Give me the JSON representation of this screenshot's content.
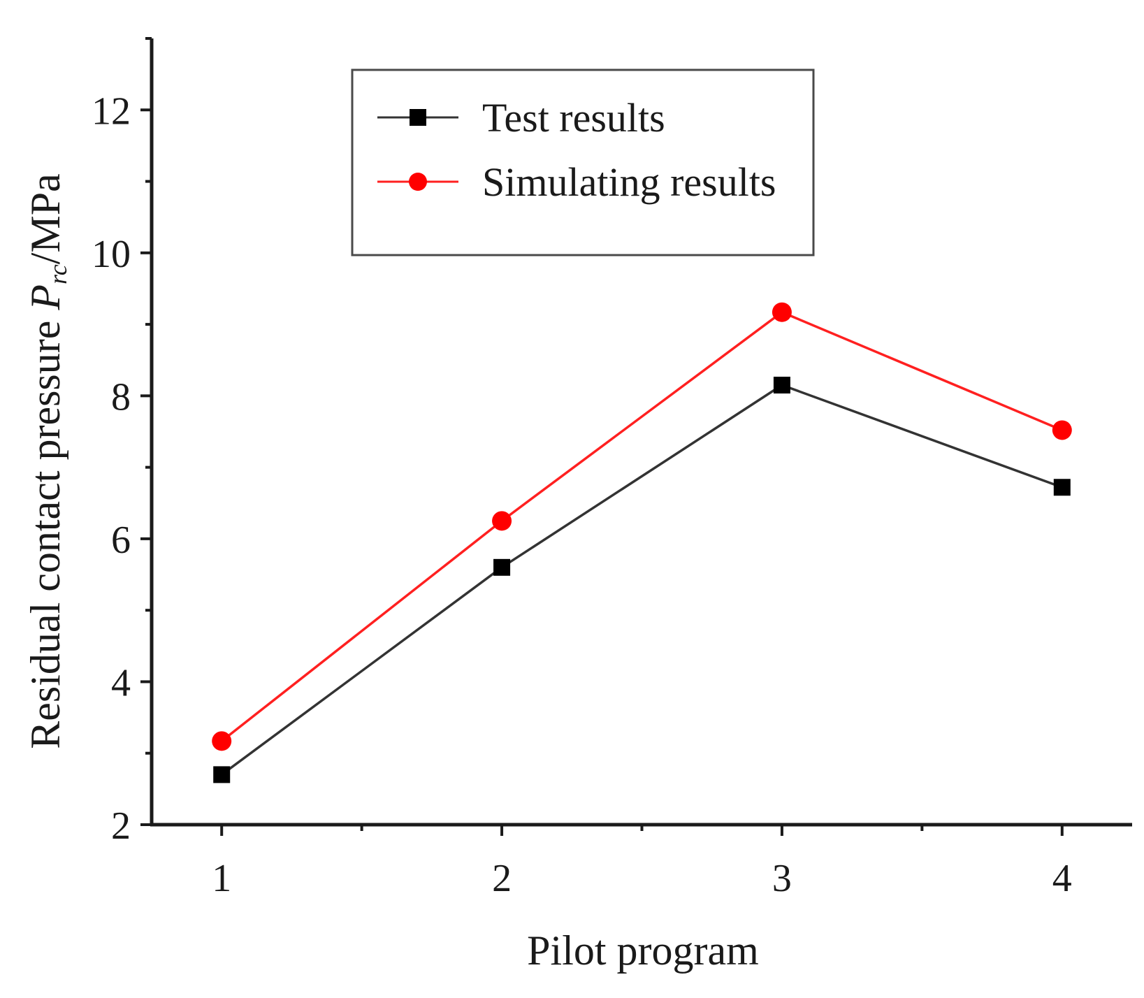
{
  "chart_data": {
    "type": "line",
    "title": "",
    "xlabel": "Pilot program",
    "ylabel": {
      "prefix": "Residual contact pressure ",
      "symbol": "P",
      "subscript": "rc",
      "unit": "/MPa"
    },
    "categories": [
      "1",
      "2",
      "3",
      "4"
    ],
    "x": [
      1,
      2,
      3,
      4
    ],
    "xlim": [
      0.75,
      4.25
    ],
    "ylim": [
      2,
      13
    ],
    "yticks": [
      2,
      4,
      6,
      8,
      10,
      12
    ],
    "ytick_labels": [
      "2",
      "4",
      "6",
      "8",
      "10",
      "12"
    ],
    "grid": false,
    "legend_position": "top-center",
    "series": [
      {
        "name": "Test results",
        "marker": "square",
        "color": "#000000",
        "line_color": "#333333",
        "values": [
          2.7,
          5.6,
          8.15,
          6.72
        ]
      },
      {
        "name": "Simulating results",
        "marker": "circle",
        "color": "#ff0000",
        "line_color": "#ff2020",
        "values": [
          3.17,
          6.25,
          9.17,
          7.52
        ]
      }
    ]
  }
}
